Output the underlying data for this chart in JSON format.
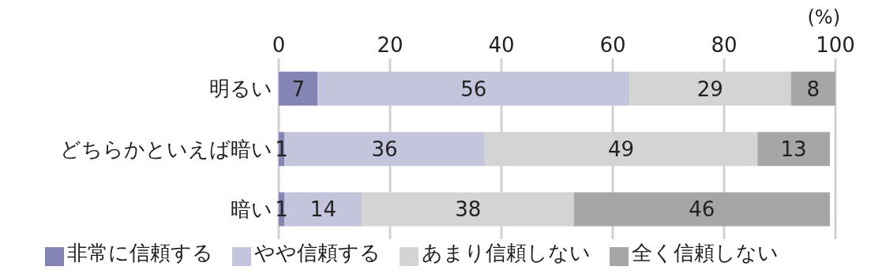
{
  "chart_data": {
    "type": "bar",
    "orientation": "horizontal",
    "stacked": true,
    "xlabel": "(%)",
    "categories": [
      "明るい",
      "どちらかといえば暗い",
      "暗い"
    ],
    "series": [
      {
        "name": "非常に信頼する",
        "color": "#8585b5",
        "values": [
          7,
          1,
          1
        ]
      },
      {
        "name": "やや信頼する",
        "color": "#c4c4dc",
        "values": [
          56,
          36,
          14
        ]
      },
      {
        "name": "あまり信頼しない",
        "color": "#d4d4d4",
        "values": [
          29,
          49,
          38
        ]
      },
      {
        "name": "全く信頼しない",
        "color": "#a6a6a6",
        "values": [
          8,
          13,
          46
        ]
      }
    ],
    "xlim": [
      0,
      100
    ],
    "xticks": [
      0,
      20,
      40,
      60,
      80,
      100
    ],
    "grid": "x",
    "legend": "bottom",
    "data_labels": true
  }
}
